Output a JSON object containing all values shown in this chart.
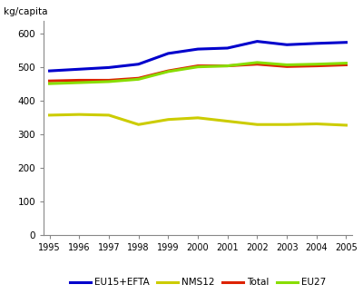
{
  "years": [
    1995,
    1996,
    1997,
    1998,
    1999,
    2000,
    2001,
    2002,
    2003,
    2004,
    2005
  ],
  "EU15_EFTA": [
    490,
    495,
    500,
    510,
    542,
    555,
    558,
    578,
    568,
    572,
    575
  ],
  "NMS12": [
    358,
    360,
    358,
    330,
    345,
    350,
    340,
    330,
    330,
    332,
    328
  ],
  "Total": [
    460,
    462,
    462,
    468,
    490,
    505,
    505,
    510,
    503,
    505,
    508
  ],
  "EU27": [
    452,
    455,
    458,
    465,
    488,
    502,
    505,
    515,
    508,
    510,
    513
  ],
  "colors": {
    "EU15_EFTA": "#0000cc",
    "NMS12": "#cccc00",
    "Total": "#dd2200",
    "EU27": "#88dd00"
  },
  "ylabel": "kg/capita",
  "ylim": [
    0,
    640
  ],
  "yticks": [
    0,
    100,
    200,
    300,
    400,
    500,
    600
  ],
  "linewidth": 2.2,
  "fig_width": 4.0,
  "fig_height": 3.24,
  "dpi": 100
}
